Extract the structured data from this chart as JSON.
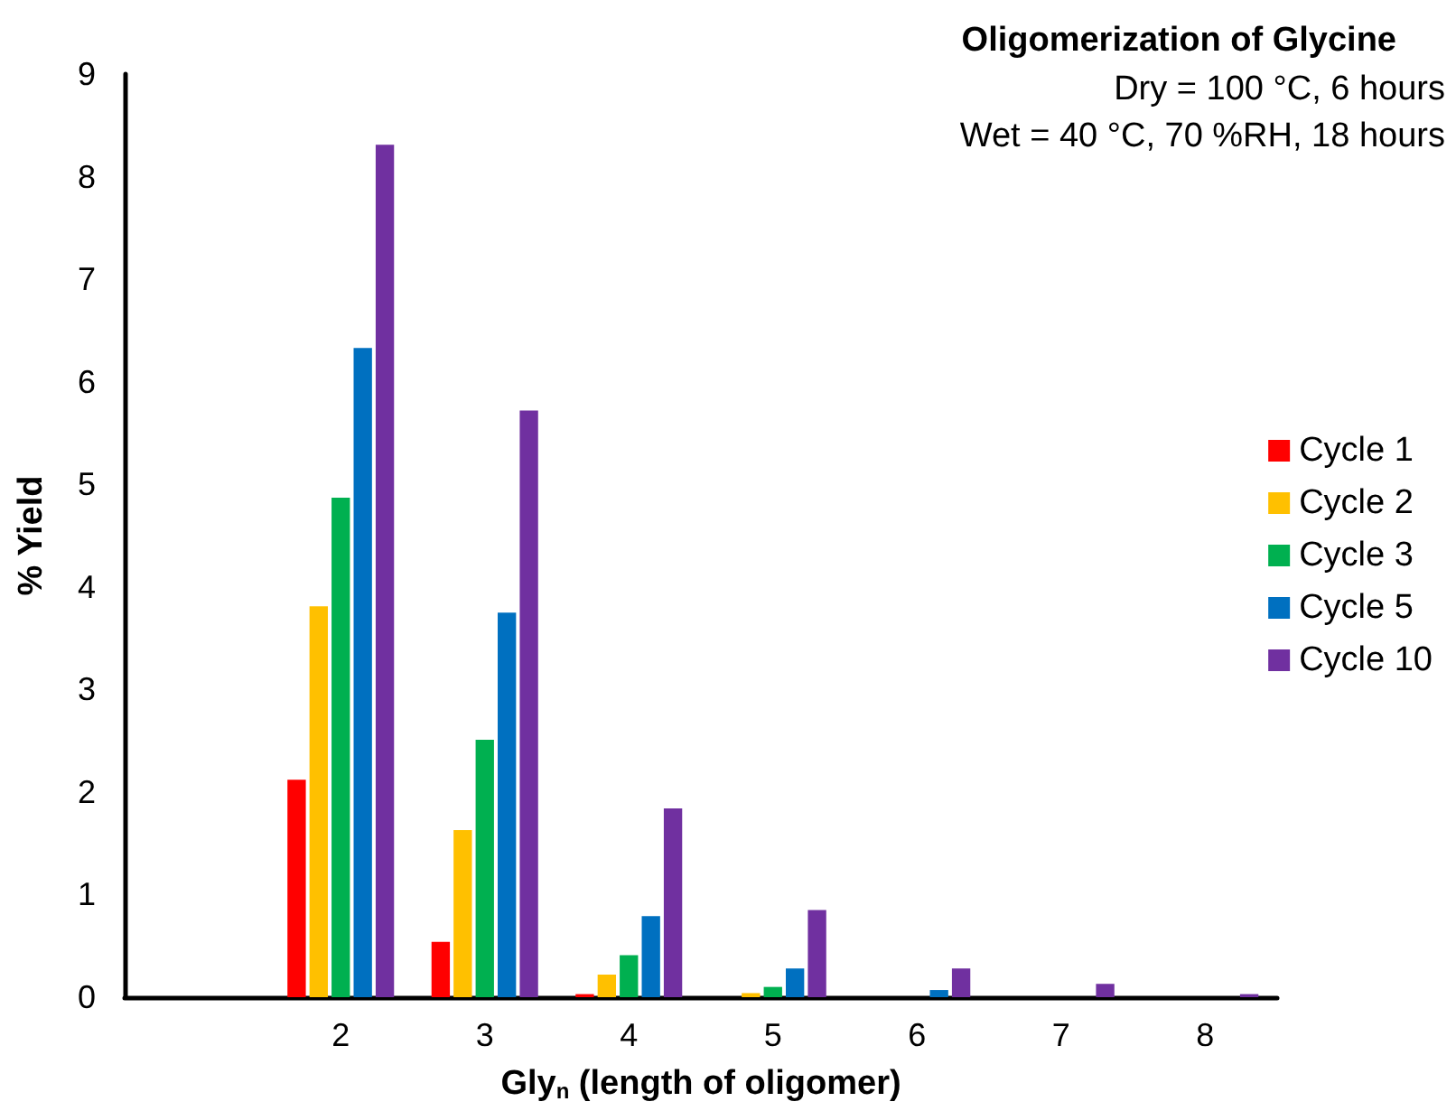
{
  "chart_data": {
    "type": "bar",
    "title": "Oligomerization of Glycine",
    "annotations": [
      "Dry = 100 °C, 6 hours",
      "Wet = 40 °C, 70 %RH, 18 hours"
    ],
    "xlabel": "Gly$_{n}$ (length of oligomer)",
    "ylabel": "% Yield",
    "categories": [
      null,
      "2",
      "3",
      "4",
      "5",
      "6",
      "7",
      "8"
    ],
    "series": [
      {
        "name": "Cycle 1",
        "color": "#ff0000",
        "values": [
          null,
          2.12,
          0.54,
          0.03,
          0,
          0,
          0,
          0
        ]
      },
      {
        "name": "Cycle 2",
        "color": "#ffc000",
        "values": [
          null,
          3.81,
          1.63,
          0.22,
          0.04,
          0,
          0,
          0
        ]
      },
      {
        "name": "Cycle 3",
        "color": "#00b050",
        "values": [
          null,
          4.87,
          2.51,
          0.41,
          0.1,
          0,
          0,
          0
        ]
      },
      {
        "name": "Cycle 5",
        "color": "#0070c0",
        "values": [
          null,
          6.33,
          3.75,
          0.79,
          0.28,
          0.07,
          0,
          0
        ]
      },
      {
        "name": "Cycle 10",
        "color": "#7030a0",
        "values": [
          null,
          8.31,
          5.72,
          1.84,
          0.85,
          0.28,
          0.13,
          0.03
        ]
      }
    ],
    "ylim": [
      0,
      9
    ],
    "yticks": [
      0,
      1,
      2,
      3,
      4,
      5,
      6,
      7,
      8,
      9
    ],
    "grid": false,
    "legend": "right"
  }
}
